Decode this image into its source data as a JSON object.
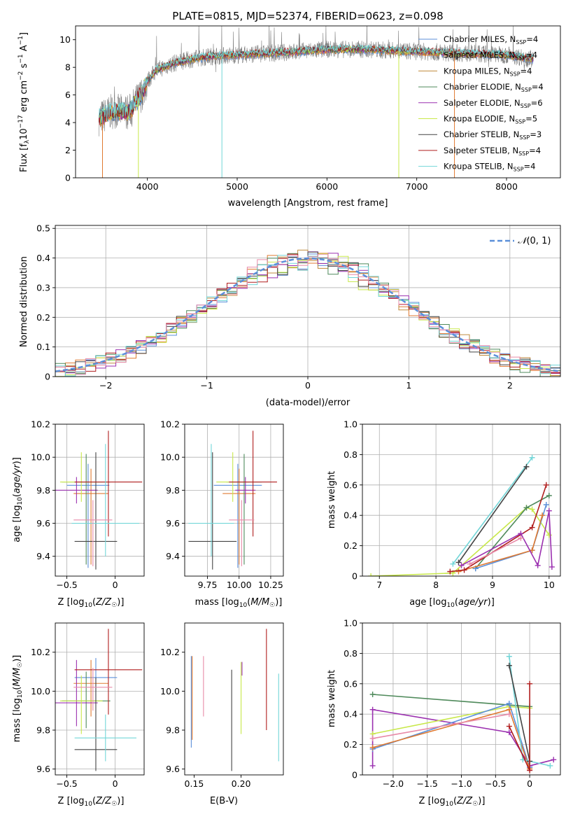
{
  "figure_title": "PLATE=0815, MJD=52374, FIBERID=0623, z=0.098",
  "colors": {
    "chabrier_miles": "#5b8fd9",
    "salpeter_miles": "#e07a30",
    "kroupa_miles": "#c08a3c",
    "chabrier_elodie": "#4f8a5b",
    "salpeter_elodie": "#9b30b0",
    "kroupa_elodie": "#c8e84a",
    "chabrier_stelib": "#444444",
    "salpeter_stelib": "#b01e1e",
    "kroupa_stelib": "#72d6d8",
    "pink": "#e88aa8",
    "normal": "#5b8fd9",
    "spectrum_grey": "#808080"
  },
  "chart_data": [
    {
      "id": "spectrum",
      "type": "line",
      "title": "PLATE=0815, MJD=52374, FIBERID=0623, z=0.098",
      "xlabel": "wavelength [Angstrom, rest frame]",
      "ylabel": "Flux [f_λ 10^-17 erg cm^-2 s^-1 A^-1]",
      "xlim": [
        3200,
        8600
      ],
      "ylim": [
        0,
        11
      ],
      "xticks": [
        4000,
        5000,
        6000,
        7000,
        8000
      ],
      "yticks": [
        0,
        2,
        4,
        6,
        8,
        10
      ],
      "grid": false,
      "legend_position": "top-right",
      "continuum_x": [
        3460,
        3600,
        3800,
        3950,
        4000,
        4100,
        4300,
        4500,
        4700,
        5000,
        5300,
        5600,
        6000,
        6400,
        6800,
        7200,
        7600,
        8000,
        8300
      ],
      "continuum_y": [
        4.3,
        4.8,
        4.8,
        6.2,
        7.0,
        7.8,
        8.3,
        8.6,
        8.8,
        8.9,
        9.0,
        9.1,
        9.3,
        9.3,
        9.2,
        9.1,
        9.0,
        8.9,
        8.6
      ],
      "series": [
        {
          "name": "Chabrier MILES, N_SSP=4",
          "color_key": "chabrier_miles"
        },
        {
          "name": "Salpeter MILES, N_SSP=4",
          "color_key": "salpeter_miles"
        },
        {
          "name": "Kroupa MILES, N_SSP=4",
          "color_key": "kroupa_miles"
        },
        {
          "name": "Chabrier ELODIE, N_SSP=4",
          "color_key": "chabrier_elodie"
        },
        {
          "name": "Salpeter ELODIE, N_SSP=6",
          "color_key": "salpeter_elodie"
        },
        {
          "name": "Kroupa ELODIE, N_SSP=5",
          "color_key": "kroupa_elodie"
        },
        {
          "name": "Chabrier STELIB, N_SSP=3",
          "color_key": "chabrier_stelib"
        },
        {
          "name": "Salpeter STELIB, N_SSP=4",
          "color_key": "salpeter_stelib"
        },
        {
          "name": "Kroupa STELIB, N_SSP=4",
          "color_key": "kroupa_stelib"
        }
      ],
      "legend_labels": [
        {
          "main": "Chabrier MILES, N",
          "sub": "SSP",
          "tail": "=4",
          "color_key": "chabrier_miles"
        },
        {
          "main": "Salpeter MILES, N",
          "sub": "SSP",
          "tail": "=4",
          "color_key": "salpeter_miles"
        },
        {
          "main": "Kroupa MILES, N",
          "sub": "SSP",
          "tail": "=4",
          "color_key": "kroupa_miles"
        },
        {
          "main": "Chabrier ELODIE, N",
          "sub": "SSP",
          "tail": "=4",
          "color_key": "chabrier_elodie"
        },
        {
          "main": "Salpeter ELODIE, N",
          "sub": "SSP",
          "tail": "=6",
          "color_key": "salpeter_elodie"
        },
        {
          "main": "Kroupa ELODIE, N",
          "sub": "SSP",
          "tail": "=5",
          "color_key": "kroupa_elodie"
        },
        {
          "main": "Chabrier STELIB, N",
          "sub": "SSP",
          "tail": "=3",
          "color_key": "chabrier_stelib"
        },
        {
          "main": "Salpeter STELIB, N",
          "sub": "SSP",
          "tail": "=4",
          "color_key": "salpeter_stelib"
        },
        {
          "main": "Kroupa STELIB, N",
          "sub": "SSP",
          "tail": "=4",
          "color_key": "kroupa_stelib"
        }
      ],
      "spikes": [
        {
          "x": 3500,
          "y0": 0,
          "color_key": "salpeter_miles"
        },
        {
          "x": 3900,
          "y0": 0,
          "color_key": "kroupa_elodie"
        },
        {
          "x": 4830,
          "y0": 0,
          "color_key": "kroupa_stelib"
        },
        {
          "x": 6800,
          "y0": 0,
          "color_key": "kroupa_elodie"
        },
        {
          "x": 7420,
          "y0": 0,
          "color_key": "salpeter_miles"
        }
      ]
    },
    {
      "id": "residual_hist",
      "type": "histogram",
      "xlabel": "(data-model)/error",
      "ylabel": "Normed distribution",
      "xlim": [
        -2.5,
        2.5
      ],
      "ylim": [
        0,
        0.51
      ],
      "xticks": [
        -2,
        -1,
        0,
        1,
        2
      ],
      "yticks": [
        0.0,
        0.1,
        0.2,
        0.3,
        0.4,
        0.5
      ],
      "grid": true,
      "legend_position": "top-right",
      "legend_label": "N(0,1)",
      "bin_width": 0.1,
      "series_color_keys": [
        "chabrier_miles",
        "salpeter_miles",
        "kroupa_miles",
        "chabrier_elodie",
        "salpeter_elodie",
        "kroupa_elodie",
        "chabrier_stelib",
        "salpeter_stelib",
        "kroupa_stelib",
        "pink"
      ]
    },
    {
      "id": "age_vs_Z",
      "type": "errorbar",
      "xlabel": "Z [log10(Z/Z_sun)]",
      "ylabel": "age [log10(age/yr)]",
      "xlim": [
        -0.62,
        0.3
      ],
      "ylim": [
        9.28,
        10.2
      ],
      "xticks": [
        -0.5,
        0.0
      ],
      "yticks": [
        9.4,
        9.6,
        9.8,
        10.0,
        10.2
      ],
      "grid": true,
      "points": [
        {
          "x": -0.28,
          "y": 9.83,
          "xerr": 0.22,
          "yerr": [
            0.5,
            0.13
          ],
          "color_key": "chabrier_miles"
        },
        {
          "x": -0.25,
          "y": 9.78,
          "xerr": 0.18,
          "yerr": [
            0.43,
            0.15
          ],
          "color_key": "salpeter_miles"
        },
        {
          "x": -0.3,
          "y": 9.85,
          "xerr": 0.25,
          "yerr": [
            0.5,
            0.17
          ],
          "color_key": "chabrier_elodie"
        },
        {
          "x": -0.4,
          "y": 9.8,
          "xerr": 0.22,
          "yerr": [
            0.08,
            0.08
          ],
          "color_key": "salpeter_elodie"
        },
        {
          "x": -0.35,
          "y": 9.85,
          "xerr": 0.22,
          "yerr": [
            0.12,
            0.18
          ],
          "color_key": "kroupa_elodie"
        },
        {
          "x": -0.2,
          "y": 9.49,
          "xerr": 0.22,
          "yerr": [
            0.17,
            0.54
          ],
          "color_key": "chabrier_stelib"
        },
        {
          "x": -0.07,
          "y": 9.85,
          "xerr": 0.35,
          "yerr": [
            0.33,
            0.31
          ],
          "color_key": "salpeter_stelib"
        },
        {
          "x": -0.1,
          "y": 9.6,
          "xerr": 0.35,
          "yerr": [
            0.2,
            0.48
          ],
          "color_key": "kroupa_stelib"
        },
        {
          "x": -0.23,
          "y": 9.62,
          "xerr": 0.2,
          "yerr": [
            0.28,
            0.12
          ],
          "color_key": "pink"
        }
      ]
    },
    {
      "id": "age_vs_mass",
      "type": "errorbar",
      "xlabel": "mass [log10(M/M_sun)]",
      "ylabel": "",
      "xlim": [
        9.57,
        10.35
      ],
      "ylim": [
        9.28,
        10.2
      ],
      "xticks": [
        9.75,
        10.0,
        10.25
      ],
      "yticks": [
        9.4,
        9.6,
        9.8,
        10.0,
        10.2
      ],
      "grid": true,
      "points": [
        {
          "x": 9.99,
          "y": 9.83,
          "xerr": 0.19,
          "yerr": [
            0.5,
            0.13
          ],
          "color_key": "chabrier_miles"
        },
        {
          "x": 10.0,
          "y": 9.78,
          "xerr": 0.13,
          "yerr": [
            0.43,
            0.15
          ],
          "color_key": "salpeter_miles"
        },
        {
          "x": 10.04,
          "y": 9.85,
          "xerr": 0.14,
          "yerr": [
            0.5,
            0.17
          ],
          "color_key": "chabrier_elodie"
        },
        {
          "x": 10.05,
          "y": 9.8,
          "xerr": 0.08,
          "yerr": [
            0.08,
            0.08
          ],
          "color_key": "salpeter_elodie"
        },
        {
          "x": 9.95,
          "y": 9.85,
          "xerr": 0.13,
          "yerr": [
            0.12,
            0.18
          ],
          "color_key": "kroupa_elodie"
        },
        {
          "x": 9.79,
          "y": 9.49,
          "xerr": 0.19,
          "yerr": [
            0.17,
            0.54
          ],
          "color_key": "chabrier_stelib"
        },
        {
          "x": 10.11,
          "y": 9.85,
          "xerr": 0.19,
          "yerr": [
            0.33,
            0.31
          ],
          "color_key": "salpeter_stelib"
        },
        {
          "x": 9.78,
          "y": 9.6,
          "xerr": 0.18,
          "yerr": [
            0.2,
            0.48
          ],
          "color_key": "kroupa_stelib"
        },
        {
          "x": 10.02,
          "y": 9.62,
          "xerr": 0.1,
          "yerr": [
            0.28,
            0.12
          ],
          "color_key": "pink"
        }
      ]
    },
    {
      "id": "weight_vs_age",
      "type": "line",
      "xlabel": "age [log10(age/yr)]",
      "ylabel": "mass weight",
      "xlim": [
        6.7,
        10.2
      ],
      "ylim": [
        0,
        1.0
      ],
      "xticks": [
        7,
        8,
        9,
        10
      ],
      "yticks": [
        0.0,
        0.2,
        0.4,
        0.6,
        0.8,
        1.0
      ],
      "grid": true,
      "series": [
        {
          "color_key": "kroupa_elodie",
          "x": [
            6.85,
            8.3,
            9.6,
            9.7,
            10.0
          ],
          "y": [
            0.0,
            0.02,
            0.45,
            0.44,
            0.27
          ]
        },
        {
          "color_key": "chabrier_elodie",
          "x": [
            8.7,
            9.6,
            10.0
          ],
          "y": [
            0.05,
            0.45,
            0.53
          ]
        },
        {
          "color_key": "chabrier_miles",
          "x": [
            8.7,
            9.7,
            9.95
          ],
          "y": [
            0.05,
            0.17,
            0.47
          ]
        },
        {
          "color_key": "salpeter_miles",
          "x": [
            8.4,
            9.7,
            9.88
          ],
          "y": [
            0.03,
            0.17,
            0.4
          ]
        },
        {
          "color_key": "kroupa_stelib",
          "x": [
            8.3,
            9.7
          ],
          "y": [
            0.08,
            0.78
          ]
        },
        {
          "color_key": "chabrier_stelib",
          "x": [
            8.4,
            9.6
          ],
          "y": [
            0.09,
            0.72
          ]
        },
        {
          "color_key": "salpeter_stelib",
          "x": [
            8.25,
            8.5,
            9.7,
            9.95
          ],
          "y": [
            0.03,
            0.04,
            0.32,
            0.6
          ]
        },
        {
          "color_key": "salpeter_elodie",
          "x": [
            8.45,
            9.5,
            9.8,
            10.0,
            10.05
          ],
          "y": [
            0.07,
            0.28,
            0.07,
            0.43,
            0.06
          ]
        },
        {
          "color_key": "pink",
          "x": [
            8.6,
            9.5
          ],
          "y": [
            0.08,
            0.25
          ]
        }
      ]
    },
    {
      "id": "mass_vs_Z",
      "type": "errorbar",
      "xlabel": "Z [log10(Z/Z_sun)]",
      "ylabel": "mass [log10(M/M_sun)]",
      "xlim": [
        -0.62,
        0.3
      ],
      "ylim": [
        9.57,
        10.35
      ],
      "xticks": [
        -0.5,
        0.0
      ],
      "yticks": [
        9.6,
        9.8,
        10.0,
        10.2
      ],
      "grid": true,
      "points": [
        {
          "x": -0.2,
          "y": 10.07,
          "xerr": 0.22,
          "yerr": [
            0.12,
            0.1
          ],
          "color_key": "chabrier_miles"
        },
        {
          "x": -0.25,
          "y": 10.04,
          "xerr": 0.18,
          "yerr": [
            0.17,
            0.12
          ],
          "color_key": "salpeter_miles"
        },
        {
          "x": -0.3,
          "y": 9.95,
          "xerr": 0.25,
          "yerr": [
            0.14,
            0.15
          ],
          "color_key": "chabrier_elodie"
        },
        {
          "x": -0.4,
          "y": 9.94,
          "xerr": 0.22,
          "yerr": [
            0.12,
            0.22
          ],
          "color_key": "salpeter_elodie"
        },
        {
          "x": -0.35,
          "y": 9.95,
          "xerr": 0.22,
          "yerr": [
            0.17,
            0.13
          ],
          "color_key": "kroupa_elodie"
        },
        {
          "x": -0.2,
          "y": 9.7,
          "xerr": 0.22,
          "yerr": [
            0.11,
            0.37
          ],
          "color_key": "chabrier_stelib"
        },
        {
          "x": -0.07,
          "y": 10.11,
          "xerr": 0.35,
          "yerr": [
            0.23,
            0.21
          ],
          "color_key": "salpeter_stelib"
        },
        {
          "x": -0.1,
          "y": 9.76,
          "xerr": 0.32,
          "yerr": [
            0.12,
            0.12
          ],
          "color_key": "kroupa_stelib"
        },
        {
          "x": -0.23,
          "y": 10.02,
          "xerr": 0.2,
          "yerr": [
            0.12,
            0.1
          ],
          "color_key": "pink"
        }
      ]
    },
    {
      "id": "mass_vs_EBV",
      "type": "errorbar",
      "xlabel": "E(B-V)",
      "ylabel": "",
      "xlim": [
        0.14,
        0.245
      ],
      "ylim": [
        9.57,
        10.35
      ],
      "xticks": [
        0.15,
        0.2
      ],
      "yticks": [
        9.6,
        9.8,
        10.0,
        10.2
      ],
      "grid": false,
      "points": [
        {
          "x": 0.147,
          "y": 9.98,
          "yerr": [
            0.27,
            0.2
          ],
          "color_key": "chabrier_miles"
        },
        {
          "x": 0.148,
          "y": 9.97,
          "yerr": [
            0.22,
            0.21
          ],
          "color_key": "salpeter_miles"
        },
        {
          "x": 0.16,
          "y": 10.05,
          "yerr": [
            0.18,
            0.13
          ],
          "color_key": "pink"
        },
        {
          "x": 0.19,
          "y": 9.85,
          "yerr": [
            0.26,
            0.26
          ],
          "color_key": "chabrier_stelib"
        },
        {
          "x": 0.2,
          "y": 10.0,
          "yerr": [
            0.22,
            0.15
          ],
          "color_key": "kroupa_elodie"
        },
        {
          "x": 0.201,
          "y": 10.1,
          "yerr": [
            0.02,
            0.05
          ],
          "color_key": "salpeter_elodie"
        },
        {
          "x": 0.227,
          "y": 10.06,
          "yerr": [
            0.26,
            0.26
          ],
          "color_key": "salpeter_stelib"
        },
        {
          "x": 0.24,
          "y": 9.87,
          "yerr": [
            0.23,
            0.22
          ],
          "color_key": "kroupa_stelib"
        }
      ]
    },
    {
      "id": "weight_vs_Z",
      "type": "line",
      "xlabel": "Z [log10(Z/Z_sun)]",
      "ylabel": "mass weight",
      "xlim": [
        -2.45,
        0.45
      ],
      "ylim": [
        0,
        1.0
      ],
      "xticks": [
        -2.0,
        -1.5,
        -1.0,
        -0.5,
        0.0
      ],
      "yticks": [
        0.0,
        0.2,
        0.4,
        0.6,
        0.8,
        1.0
      ],
      "grid": true,
      "series": [
        {
          "color_key": "chabrier_elodie",
          "x": [
            -2.3,
            0.0,
            0.0
          ],
          "y": [
            0.53,
            0.45,
            0.05
          ]
        },
        {
          "color_key": "salpeter_elodie",
          "x": [
            -2.3,
            -2.3,
            -0.3,
            0.0,
            0.35
          ],
          "y": [
            0.06,
            0.43,
            0.28,
            0.06,
            0.1
          ]
        },
        {
          "color_key": "kroupa_elodie",
          "x": [
            -2.3,
            -0.3,
            0.0
          ],
          "y": [
            0.27,
            0.45,
            0.44
          ]
        },
        {
          "color_key": "chabrier_miles",
          "x": [
            -2.3,
            -0.3,
            0.0
          ],
          "y": [
            0.17,
            0.47,
            0.05
          ]
        },
        {
          "color_key": "salpeter_miles",
          "x": [
            -2.3,
            -0.3,
            0.0
          ],
          "y": [
            0.18,
            0.43,
            0.04
          ]
        },
        {
          "color_key": "pink",
          "x": [
            -2.3,
            -0.3
          ],
          "y": [
            0.24,
            0.4
          ]
        },
        {
          "color_key": "kroupa_stelib",
          "x": [
            -0.3,
            -0.1,
            0.3
          ],
          "y": [
            0.78,
            0.1,
            0.06
          ]
        },
        {
          "color_key": "chabrier_stelib",
          "x": [
            -0.3,
            0.0
          ],
          "y": [
            0.72,
            0.09
          ]
        },
        {
          "color_key": "salpeter_stelib",
          "x": [
            -0.3,
            0.0,
            0.0
          ],
          "y": [
            0.32,
            0.03,
            0.6
          ]
        }
      ]
    }
  ]
}
